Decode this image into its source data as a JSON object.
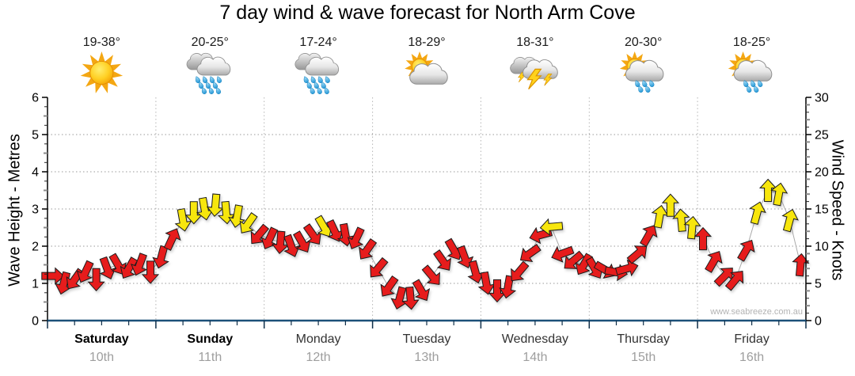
{
  "title": "7 day wind & wave forecast for North Arm Cove",
  "watermark": "www.seabreeze.com.au",
  "axes": {
    "left": {
      "label": "Wave Height - Metres",
      "ticks": [
        0,
        1,
        2,
        3,
        4,
        5,
        6
      ],
      "range": [
        0,
        6
      ],
      "unit": "m"
    },
    "right": {
      "label": "Wind Speed - Knots",
      "ticks": [
        0,
        5,
        10,
        15,
        20,
        25,
        30
      ],
      "range": [
        0,
        30
      ],
      "unit": "knots"
    }
  },
  "days": [
    {
      "name": "Saturday",
      "date": "10th",
      "temp": "19-38°",
      "icon": "sunny",
      "weekend": true
    },
    {
      "name": "Sunday",
      "date": "11th",
      "temp": "20-25°",
      "icon": "rain",
      "weekend": true
    },
    {
      "name": "Monday",
      "date": "12th",
      "temp": "17-24°",
      "icon": "rain",
      "weekend": false
    },
    {
      "name": "Tuesday",
      "date": "13th",
      "temp": "18-29°",
      "icon": "partly-cloudy",
      "weekend": false
    },
    {
      "name": "Wednesday",
      "date": "14th",
      "temp": "18-31°",
      "icon": "thunderstorm",
      "weekend": false
    },
    {
      "name": "Thursday",
      "date": "15th",
      "temp": "20-30°",
      "icon": "sun-showers",
      "weekend": false
    },
    {
      "name": "Friday",
      "date": "16th",
      "temp": "18-25°",
      "icon": "sun-showers",
      "weekend": false
    }
  ],
  "colors": {
    "arrow_red": "#e61e1e",
    "arrow_yellow": "#f7e60a",
    "arrow_outline": "#1a1a1a",
    "axis_bottom": "#1c5078",
    "grid": "#9a9a9a",
    "day_name": "#333333",
    "weekend_name": "#000000",
    "date_text": "#9e9e9e",
    "connector": "#aaaaaa"
  },
  "chart_data": {
    "type": "wind-arrows-timeseries",
    "description": "Wind speed/direction arrows every ~2.4h over 7 days; arrow colour = red (lighter wind) / yellow (stronger wind); arrows read against right axis in knots; dir_deg is screen direction arrow points toward (0=up/N, 90=right/E)",
    "slots_per_day": 10,
    "x_days": [
      "Saturday 10th",
      "Sunday 11th",
      "Monday 12th",
      "Tuesday 13th",
      "Wednesday 14th",
      "Thursday 15th",
      "Friday 16th"
    ],
    "left_axis_range_metres": [
      0,
      6
    ],
    "right_axis_range_knots": [
      0,
      30
    ],
    "grid": "dotted horizontal each 5 knots, dotted vertical each day boundary",
    "arrows": [
      {
        "day": 0,
        "slot": 0,
        "knots": 6.0,
        "dir_deg": 90,
        "color": "red"
      },
      {
        "day": 0,
        "slot": 1,
        "knots": 5.0,
        "dir_deg": 195,
        "color": "red"
      },
      {
        "day": 0,
        "slot": 2,
        "knots": 5.5,
        "dir_deg": 215,
        "color": "red"
      },
      {
        "day": 0,
        "slot": 3,
        "knots": 6.5,
        "dir_deg": 205,
        "color": "red"
      },
      {
        "day": 0,
        "slot": 4,
        "knots": 5.5,
        "dir_deg": 180,
        "color": "red"
      },
      {
        "day": 0,
        "slot": 5,
        "knots": 7.0,
        "dir_deg": 160,
        "color": "red"
      },
      {
        "day": 0,
        "slot": 6,
        "knots": 7.5,
        "dir_deg": 150,
        "color": "red"
      },
      {
        "day": 0,
        "slot": 7,
        "knots": 7.0,
        "dir_deg": 210,
        "color": "red"
      },
      {
        "day": 0,
        "slot": 8,
        "knots": 7.5,
        "dir_deg": 200,
        "color": "red"
      },
      {
        "day": 0,
        "slot": 9,
        "knots": 6.5,
        "dir_deg": 180,
        "color": "red"
      },
      {
        "day": 1,
        "slot": 0,
        "knots": 8.5,
        "dir_deg": 195,
        "color": "red"
      },
      {
        "day": 1,
        "slot": 1,
        "knots": 11.0,
        "dir_deg": 25,
        "color": "red"
      },
      {
        "day": 1,
        "slot": 2,
        "knots": 13.5,
        "dir_deg": 170,
        "color": "yellow"
      },
      {
        "day": 1,
        "slot": 3,
        "knots": 14.5,
        "dir_deg": 180,
        "color": "yellow"
      },
      {
        "day": 1,
        "slot": 4,
        "knots": 15.0,
        "dir_deg": 170,
        "color": "yellow"
      },
      {
        "day": 1,
        "slot": 5,
        "knots": 15.5,
        "dir_deg": 185,
        "color": "yellow"
      },
      {
        "day": 1,
        "slot": 6,
        "knots": 14.5,
        "dir_deg": 175,
        "color": "yellow"
      },
      {
        "day": 1,
        "slot": 7,
        "knots": 14.0,
        "dir_deg": 190,
        "color": "yellow"
      },
      {
        "day": 1,
        "slot": 8,
        "knots": 13.0,
        "dir_deg": 215,
        "color": "yellow"
      },
      {
        "day": 1,
        "slot": 9,
        "knots": 11.5,
        "dir_deg": 220,
        "color": "red"
      },
      {
        "day": 2,
        "slot": 0,
        "knots": 11.0,
        "dir_deg": 205,
        "color": "red"
      },
      {
        "day": 2,
        "slot": 1,
        "knots": 10.5,
        "dir_deg": 185,
        "color": "red"
      },
      {
        "day": 2,
        "slot": 2,
        "knots": 10.0,
        "dir_deg": 160,
        "color": "red"
      },
      {
        "day": 2,
        "slot": 3,
        "knots": 10.5,
        "dir_deg": 150,
        "color": "red"
      },
      {
        "day": 2,
        "slot": 4,
        "knots": 11.5,
        "dir_deg": 145,
        "color": "red"
      },
      {
        "day": 2,
        "slot": 5,
        "knots": 12.6,
        "dir_deg": 150,
        "color": "yellow"
      },
      {
        "day": 2,
        "slot": 6,
        "knots": 12.0,
        "dir_deg": 155,
        "color": "red"
      },
      {
        "day": 2,
        "slot": 7,
        "knots": 11.5,
        "dir_deg": 170,
        "color": "red"
      },
      {
        "day": 2,
        "slot": 8,
        "knots": 11.0,
        "dir_deg": 205,
        "color": "red"
      },
      {
        "day": 2,
        "slot": 9,
        "knots": 9.5,
        "dir_deg": 215,
        "color": "red"
      },
      {
        "day": 3,
        "slot": 0,
        "knots": 7.0,
        "dir_deg": 220,
        "color": "red"
      },
      {
        "day": 3,
        "slot": 1,
        "knots": 4.5,
        "dir_deg": 215,
        "color": "red"
      },
      {
        "day": 3,
        "slot": 2,
        "knots": 3.0,
        "dir_deg": 195,
        "color": "red"
      },
      {
        "day": 3,
        "slot": 3,
        "knots": 3.0,
        "dir_deg": 175,
        "color": "red"
      },
      {
        "day": 3,
        "slot": 4,
        "knots": 4.0,
        "dir_deg": 150,
        "color": "red"
      },
      {
        "day": 3,
        "slot": 5,
        "knots": 6.0,
        "dir_deg": 140,
        "color": "red"
      },
      {
        "day": 3,
        "slot": 6,
        "knots": 8.0,
        "dir_deg": 145,
        "color": "red"
      },
      {
        "day": 3,
        "slot": 7,
        "knots": 9.5,
        "dir_deg": 150,
        "color": "red"
      },
      {
        "day": 3,
        "slot": 8,
        "knots": 8.5,
        "dir_deg": 160,
        "color": "red"
      },
      {
        "day": 3,
        "slot": 9,
        "knots": 6.5,
        "dir_deg": 165,
        "color": "red"
      },
      {
        "day": 4,
        "slot": 0,
        "knots": 5.0,
        "dir_deg": 170,
        "color": "red"
      },
      {
        "day": 4,
        "slot": 1,
        "knots": 4.0,
        "dir_deg": 180,
        "color": "red"
      },
      {
        "day": 4,
        "slot": 2,
        "knots": 4.5,
        "dir_deg": 190,
        "color": "red"
      },
      {
        "day": 4,
        "slot": 3,
        "knots": 6.5,
        "dir_deg": 220,
        "color": "red"
      },
      {
        "day": 4,
        "slot": 4,
        "knots": 9.0,
        "dir_deg": 235,
        "color": "red"
      },
      {
        "day": 4,
        "slot": 5,
        "knots": 11.5,
        "dir_deg": 255,
        "color": "red"
      },
      {
        "day": 4,
        "slot": 6,
        "knots": 12.6,
        "dir_deg": 265,
        "color": "yellow"
      },
      {
        "day": 4,
        "slot": 7,
        "knots": 9.0,
        "dir_deg": 250,
        "color": "red"
      },
      {
        "day": 4,
        "slot": 8,
        "knots": 8.0,
        "dir_deg": 230,
        "color": "red"
      },
      {
        "day": 4,
        "slot": 9,
        "knots": 7.5,
        "dir_deg": 210,
        "color": "red"
      },
      {
        "day": 5,
        "slot": 0,
        "knots": 7.0,
        "dir_deg": 150,
        "color": "red"
      },
      {
        "day": 5,
        "slot": 1,
        "knots": 6.8,
        "dir_deg": 120,
        "color": "red"
      },
      {
        "day": 5,
        "slot": 2,
        "knots": 6.5,
        "dir_deg": 100,
        "color": "red"
      },
      {
        "day": 5,
        "slot": 3,
        "knots": 7.0,
        "dir_deg": 75,
        "color": "red"
      },
      {
        "day": 5,
        "slot": 4,
        "knots": 9.0,
        "dir_deg": 50,
        "color": "red"
      },
      {
        "day": 5,
        "slot": 5,
        "knots": 11.5,
        "dir_deg": 30,
        "color": "red"
      },
      {
        "day": 5,
        "slot": 6,
        "knots": 14.0,
        "dir_deg": 10,
        "color": "yellow"
      },
      {
        "day": 5,
        "slot": 7,
        "knots": 15.5,
        "dir_deg": 0,
        "color": "yellow"
      },
      {
        "day": 5,
        "slot": 8,
        "knots": 13.5,
        "dir_deg": 355,
        "color": "yellow"
      },
      {
        "day": 5,
        "slot": 9,
        "knots": 12.5,
        "dir_deg": 5,
        "color": "yellow"
      },
      {
        "day": 6,
        "slot": 0,
        "knots": 11.0,
        "dir_deg": 0,
        "color": "red"
      },
      {
        "day": 6,
        "slot": 1,
        "knots": 8.0,
        "dir_deg": 30,
        "color": "red"
      },
      {
        "day": 6,
        "slot": 2,
        "knots": 6.0,
        "dir_deg": 45,
        "color": "red"
      },
      {
        "day": 6,
        "slot": 3,
        "knots": 5.5,
        "dir_deg": 40,
        "color": "red"
      },
      {
        "day": 6,
        "slot": 4,
        "knots": 9.5,
        "dir_deg": 30,
        "color": "red"
      },
      {
        "day": 6,
        "slot": 5,
        "knots": 14.5,
        "dir_deg": 15,
        "color": "yellow"
      },
      {
        "day": 6,
        "slot": 6,
        "knots": 17.5,
        "dir_deg": 0,
        "color": "yellow"
      },
      {
        "day": 6,
        "slot": 7,
        "knots": 17.0,
        "dir_deg": 10,
        "color": "yellow"
      },
      {
        "day": 6,
        "slot": 8,
        "knots": 13.5,
        "dir_deg": 15,
        "color": "yellow"
      },
      {
        "day": 6,
        "slot": 9,
        "knots": 7.5,
        "dir_deg": 5,
        "color": "red"
      }
    ]
  }
}
